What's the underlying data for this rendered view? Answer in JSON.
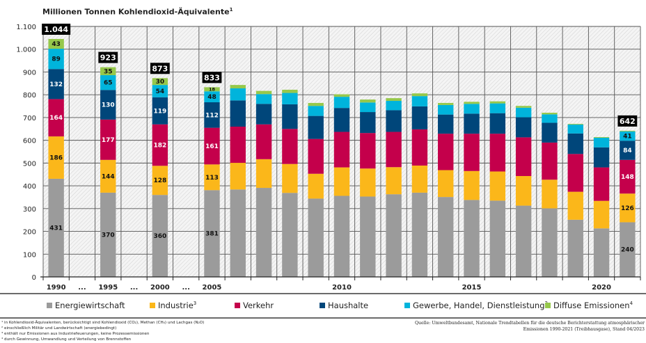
{
  "chart_data": {
    "type": "bar",
    "stacked": true,
    "title": "Millionen Tonnen Kohlendioxid-Äquivalente",
    "title_footnote": "1",
    "xlabel": "",
    "ylabel": "",
    "ylim": [
      0,
      1100
    ],
    "yticks": [
      0,
      100,
      200,
      300,
      400,
      500,
      600,
      700,
      800,
      900,
      1000,
      1100
    ],
    "ytick_labels": [
      "0",
      "100",
      "200",
      "300",
      "400",
      "500",
      "600",
      "700",
      "800",
      "900",
      "1.000",
      "1.100"
    ],
    "grid": true,
    "categories": [
      "1990",
      "...",
      "1995",
      "...",
      "2000",
      "...",
      "2005",
      "2006",
      "2007",
      "2008",
      "2009",
      "2010",
      "2011",
      "2012",
      "2013",
      "2014",
      "2015",
      "2016",
      "2017",
      "2018",
      "2019",
      "2020",
      "2021"
    ],
    "xtick_labels": [
      "1990",
      "...",
      "1995",
      "...",
      "2000",
      "...",
      "2005",
      "",
      "",
      "",
      "",
      "2010",
      "",
      "",
      "",
      "",
      "2015",
      "",
      "",
      "",
      "",
      "2020",
      ""
    ],
    "series": [
      {
        "name": "Energiewirtschaft",
        "color": "#9b9b9b",
        "label_color": "#111111",
        "values": [
          431,
          null,
          370,
          null,
          360,
          null,
          381,
          384,
          391,
          369,
          344,
          356,
          353,
          363,
          370,
          351,
          338,
          335,
          313,
          301,
          251,
          213,
          240
        ]
      },
      {
        "name": "Industrie",
        "footnote": "3",
        "color": "#fbb71a",
        "label_color": "#111111",
        "values": [
          186,
          null,
          144,
          null,
          128,
          null,
          113,
          117,
          126,
          127,
          109,
          125,
          123,
          119,
          119,
          118,
          127,
          128,
          130,
          126,
          123,
          121,
          126
        ]
      },
      {
        "name": "Verkehr",
        "footnote": "",
        "color": "#c4004b",
        "label_color": "#ffffff",
        "values": [
          164,
          null,
          177,
          null,
          182,
          null,
          161,
          159,
          153,
          154,
          153,
          156,
          156,
          155,
          159,
          160,
          164,
          166,
          170,
          163,
          166,
          147,
          148
        ]
      },
      {
        "name": "Haushalte",
        "color": "#00467a",
        "label_color": "#ffffff",
        "values": [
          132,
          null,
          130,
          null,
          119,
          null,
          112,
          115,
          90,
          108,
          101,
          105,
          92,
          95,
          101,
          84,
          88,
          90,
          88,
          87,
          90,
          88,
          84
        ]
      },
      {
        "name": "Gewerbe, Handel, Dienstleistung",
        "footnote": "2",
        "color": "#00b4dc",
        "label_color": "#111111",
        "values": [
          89,
          null,
          65,
          null,
          54,
          null,
          48,
          53,
          43,
          50,
          44,
          49,
          42,
          41,
          45,
          42,
          43,
          43,
          42,
          37,
          39,
          42,
          41
        ]
      },
      {
        "name": "Diffuse Emissionen",
        "footnote": "4",
        "color": "#96c84b",
        "label_color": "#111111",
        "values": [
          43,
          null,
          35,
          null,
          30,
          null,
          18,
          15,
          14,
          14,
          13,
          11,
          13,
          12,
          12,
          9,
          9,
          9,
          8,
          7,
          3,
          3,
          3
        ]
      }
    ],
    "labeled_categories": [
      "1990",
      "1995",
      "2000",
      "2005",
      "2021"
    ],
    "segment_labels": {
      "1990": [
        431,
        186,
        164,
        132,
        89,
        43
      ],
      "1995": [
        370,
        144,
        177,
        130,
        65,
        35
      ],
      "2000": [
        360,
        128,
        182,
        119,
        54,
        30
      ],
      "2005": [
        381,
        113,
        161,
        112,
        48,
        18
      ],
      "2021": [
        240,
        126,
        148,
        84,
        41,
        null
      ]
    },
    "totals": {
      "1990": "1.044",
      "1995": "923",
      "2000": "873",
      "2005": "833",
      "2021": "642"
    },
    "legend": {
      "placement": "bottom"
    }
  },
  "legend_items": [
    {
      "label": "Energiewirtschaft",
      "sup": ""
    },
    {
      "label": "Industrie",
      "sup": "3"
    },
    {
      "label": "Verkehr",
      "sup": ""
    },
    {
      "label": "Haushalte",
      "sup": ""
    },
    {
      "label": "Gewerbe, Handel, Dienstleistung",
      "sup": "2"
    },
    {
      "label": "Diffuse Emissionen",
      "sup": "4"
    }
  ],
  "footnotes": [
    "¹ in Kohlendioxid-Äquivalenten, berücksichtigt sind Kohlendioxid (CO₂), Methan (CH₄) und Lachgas (N₂O)",
    "² einschließlich Militär und Landwirtschaft (energiebedingt)",
    "³ enthält nur Emissionen aus Industriefeuerungen, keine Prozessemissionen",
    "⁴ durch Gewinnung, Umwandlung und Verteilung von Brennstoffen"
  ],
  "source": [
    "Quelle: Umweltbundesamt, Nationale Trendtabellen für die deutsche Berichterstattung atmosphärischer",
    "Emissionen 1990-2021 (Treibhausgase), Stand 04/2023"
  ]
}
